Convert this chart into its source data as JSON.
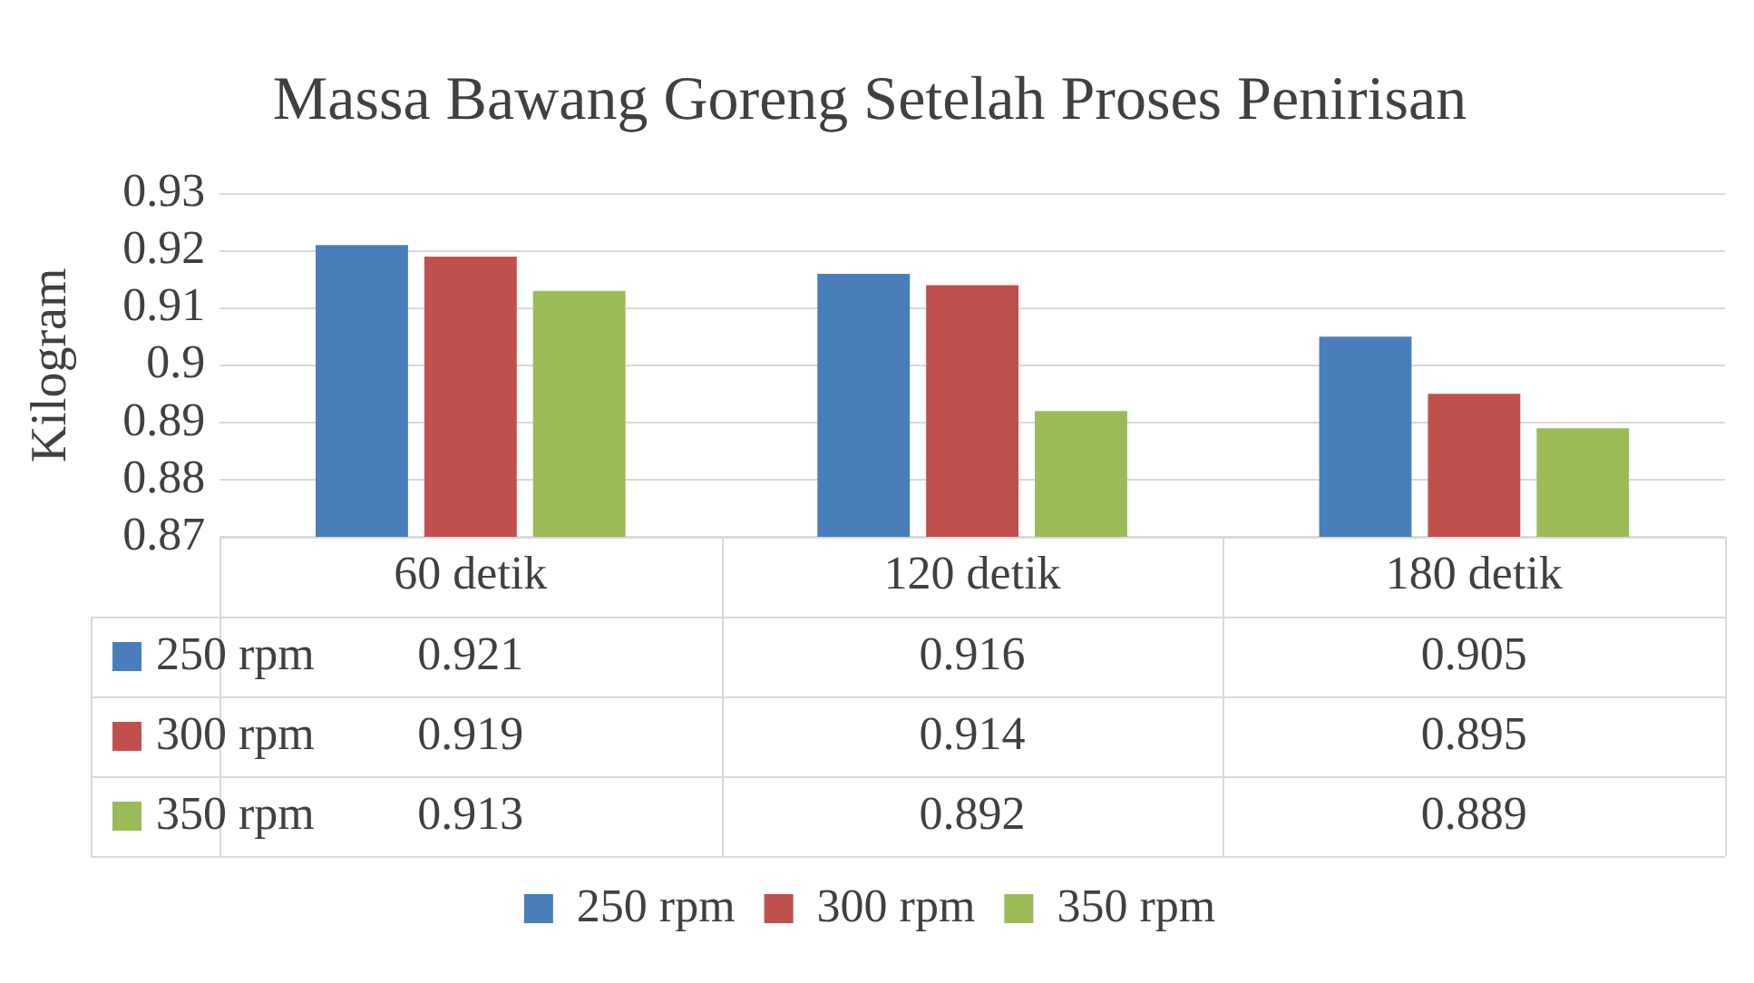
{
  "chart_data": {
    "type": "bar",
    "title": "Massa Bawang Goreng Setelah Proses Penirisan",
    "ylabel": "Kilogram",
    "categories": [
      "60 detik",
      "120 detik",
      "180 detik"
    ],
    "series": [
      {
        "name": "250 rpm",
        "color": "#4a7ebb",
        "values": [
          0.921,
          0.916,
          0.905
        ]
      },
      {
        "name": "300 rpm",
        "color": "#c0504d",
        "values": [
          0.919,
          0.914,
          0.895
        ]
      },
      {
        "name": "350 rpm",
        "color": "#9bbb59",
        "values": [
          0.913,
          0.892,
          0.889
        ]
      }
    ],
    "ylim": [
      0.87,
      0.93
    ],
    "yticks": [
      0.87,
      0.88,
      0.89,
      0.9,
      0.91,
      0.92,
      0.93
    ],
    "grid": "y",
    "legend": "bottom",
    "data_labels": true
  }
}
